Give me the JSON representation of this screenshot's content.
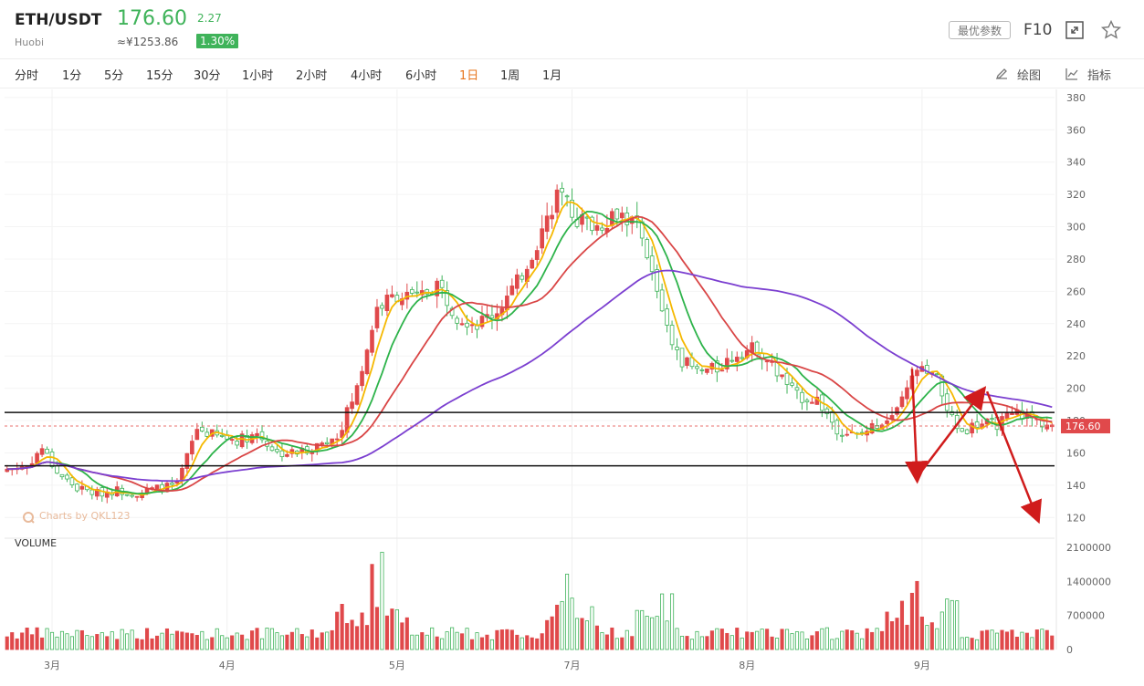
{
  "header": {
    "pair": "ETH/USDT",
    "exchange": "Huobi",
    "price": "176.60",
    "cny_price": "≈¥1253.86",
    "change": "2.27",
    "change_pct": "1.30%",
    "params_label": "最优参数",
    "f10_label": "F10",
    "up_color": "#e0494b",
    "down_color": "#3fb35a"
  },
  "toolbar": {
    "timeframes": [
      "分时",
      "1分",
      "5分",
      "15分",
      "30分",
      "1小时",
      "2小时",
      "4小时",
      "6小时",
      "1日",
      "1周",
      "1月"
    ],
    "active": "1日",
    "draw_label": "绘图",
    "indicator_label": "指标"
  },
  "volume_label": "VOLUME",
  "watermark": "Charts by QKL123",
  "chart_data": {
    "type": "candlestick",
    "price_axis": {
      "ticks": [
        120,
        140,
        160,
        180,
        200,
        220,
        240,
        260,
        280,
        300,
        320,
        340,
        360,
        380
      ],
      "range": [
        110,
        385
      ]
    },
    "volume_axis": {
      "ticks": [
        "0",
        "700000",
        "1400000",
        "2100000"
      ],
      "range": [
        0,
        2100000
      ]
    },
    "x_ticks": [
      "3月",
      "4月",
      "5月",
      "7月",
      "8月",
      "9月"
    ],
    "current_price": "176.60",
    "horizontal_lines": [
      185,
      152
    ],
    "price_path": [
      [
        0,
        150
      ],
      [
        4,
        152
      ],
      [
        7,
        163
      ],
      [
        10,
        148
      ],
      [
        14,
        138
      ],
      [
        18,
        135
      ],
      [
        22,
        137
      ],
      [
        26,
        135
      ],
      [
        30,
        138
      ],
      [
        34,
        140
      ],
      [
        38,
        175
      ],
      [
        42,
        170
      ],
      [
        46,
        168
      ],
      [
        50,
        172
      ],
      [
        54,
        160
      ],
      [
        58,
        160
      ],
      [
        62,
        165
      ],
      [
        66,
        170
      ],
      [
        70,
        200
      ],
      [
        74,
        250
      ],
      [
        78,
        258
      ],
      [
        82,
        255
      ],
      [
        86,
        265
      ],
      [
        90,
        245
      ],
      [
        94,
        240
      ],
      [
        98,
        248
      ],
      [
        102,
        265
      ],
      [
        106,
        290
      ],
      [
        110,
        320
      ],
      [
        114,
        305
      ],
      [
        118,
        300
      ],
      [
        122,
        310
      ],
      [
        126,
        300
      ],
      [
        130,
        260
      ],
      [
        134,
        220
      ],
      [
        138,
        210
      ],
      [
        142,
        212
      ],
      [
        146,
        222
      ],
      [
        150,
        225
      ],
      [
        154,
        210
      ],
      [
        158,
        195
      ],
      [
        162,
        193
      ],
      [
        166,
        175
      ],
      [
        170,
        170
      ],
      [
        174,
        178
      ],
      [
        178,
        185
      ],
      [
        182,
        212
      ],
      [
        186,
        205
      ],
      [
        190,
        172
      ],
      [
        194,
        178
      ],
      [
        198,
        178
      ],
      [
        202,
        185
      ],
      [
        206,
        180
      ],
      [
        209,
        176.6
      ]
    ],
    "moving_averages": [
      {
        "name": "MA5",
        "color": "#f5b800",
        "period": 5
      },
      {
        "name": "MA10",
        "color": "#2db34a",
        "period": 10
      },
      {
        "name": "MA20",
        "color": "#d94545",
        "period": 20
      },
      {
        "name": "MA60",
        "color": "#7b3fd0",
        "period": 60
      }
    ],
    "annotations": [
      {
        "type": "arrow",
        "from": [
          181,
          212
        ],
        "to": [
          182,
          145
        ],
        "color": "#d01c1c"
      },
      {
        "type": "arrow",
        "from": [
          182,
          145
        ],
        "to": [
          195,
          198
        ],
        "color": "#d01c1c"
      },
      {
        "type": "arrow",
        "from": [
          196,
          198
        ],
        "to": [
          206,
          120
        ],
        "color": "#d01c1c"
      }
    ],
    "xtick_positions": [
      9,
      44,
      78,
      113,
      148,
      183
    ],
    "n_days": 210
  }
}
